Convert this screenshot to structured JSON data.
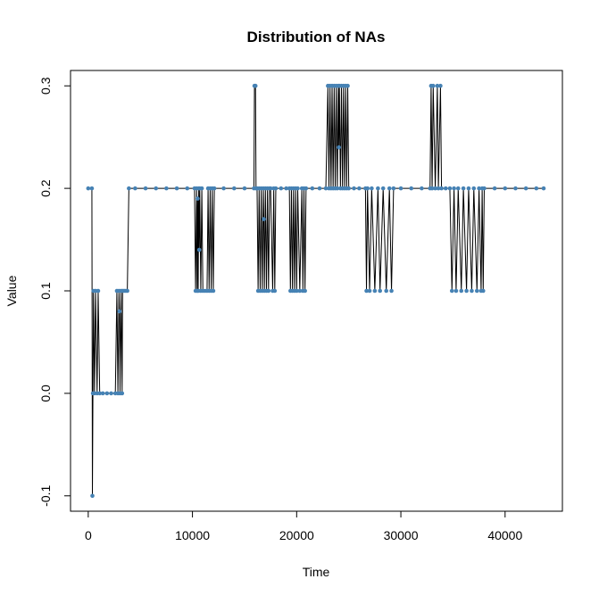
{
  "chart_data": {
    "type": "line",
    "title": "Distribution of NAs",
    "xlabel": "Time",
    "ylabel": "Value",
    "xlim": [
      -1700,
      45500
    ],
    "ylim": [
      -0.115,
      0.315
    ],
    "x_ticks": [
      0,
      10000,
      20000,
      30000,
      40000
    ],
    "x_tick_labels": [
      "0",
      "10000",
      "20000",
      "30000",
      "40000"
    ],
    "y_ticks": [
      -0.1,
      0.0,
      0.1,
      0.2,
      0.3
    ],
    "y_tick_labels": [
      "-0.1",
      "0.0",
      "0.1",
      "0.2",
      "0.3"
    ],
    "grid": false,
    "legend": "none",
    "line_color": "#000000",
    "point_color": "#4682b4",
    "series": [
      {
        "values": [
          [
            0,
            0.2
          ],
          [
            350,
            0.2
          ],
          [
            400,
            -0.1
          ],
          [
            450,
            0.0
          ],
          [
            500,
            0.1
          ],
          [
            600,
            0.0
          ],
          [
            700,
            0.1
          ],
          [
            850,
            0.0
          ],
          [
            950,
            0.1
          ],
          [
            1100,
            0.0
          ],
          [
            1400,
            0.0
          ],
          [
            1800,
            0.0
          ],
          [
            2200,
            0.0
          ],
          [
            2600,
            0.0
          ],
          [
            2750,
            0.1
          ],
          [
            2850,
            0.0
          ],
          [
            2950,
            0.1
          ],
          [
            3000,
            0.08
          ],
          [
            3050,
            0.0
          ],
          [
            3150,
            0.1
          ],
          [
            3250,
            0.0
          ],
          [
            3300,
            0.1
          ],
          [
            3450,
            0.1
          ],
          [
            3600,
            0.1
          ],
          [
            3750,
            0.1
          ],
          [
            3900,
            0.2
          ],
          [
            4500,
            0.2
          ],
          [
            5500,
            0.2
          ],
          [
            6500,
            0.2
          ],
          [
            7500,
            0.2
          ],
          [
            8500,
            0.2
          ],
          [
            9500,
            0.2
          ],
          [
            10200,
            0.2
          ],
          [
            10300,
            0.1
          ],
          [
            10400,
            0.2
          ],
          [
            10450,
            0.1
          ],
          [
            10500,
            0.19
          ],
          [
            10550,
            0.1
          ],
          [
            10600,
            0.2
          ],
          [
            10650,
            0.14
          ],
          [
            10700,
            0.2
          ],
          [
            10800,
            0.1
          ],
          [
            10900,
            0.2
          ],
          [
            11000,
            0.1
          ],
          [
            11200,
            0.1
          ],
          [
            11400,
            0.1
          ],
          [
            11500,
            0.2
          ],
          [
            11600,
            0.1
          ],
          [
            11700,
            0.2
          ],
          [
            11800,
            0.1
          ],
          [
            11900,
            0.2
          ],
          [
            12000,
            0.1
          ],
          [
            12100,
            0.2
          ],
          [
            13000,
            0.2
          ],
          [
            14000,
            0.2
          ],
          [
            15000,
            0.2
          ],
          [
            15900,
            0.2
          ],
          [
            15950,
            0.3
          ],
          [
            16050,
            0.3
          ],
          [
            16100,
            0.2
          ],
          [
            16200,
            0.2
          ],
          [
            16300,
            0.1
          ],
          [
            16400,
            0.2
          ],
          [
            16500,
            0.1
          ],
          [
            16600,
            0.2
          ],
          [
            16700,
            0.1
          ],
          [
            16800,
            0.2
          ],
          [
            16850,
            0.17
          ],
          [
            16900,
            0.1
          ],
          [
            17000,
            0.2
          ],
          [
            17100,
            0.1
          ],
          [
            17200,
            0.2
          ],
          [
            17300,
            0.1
          ],
          [
            17400,
            0.2
          ],
          [
            17500,
            0.2
          ],
          [
            17700,
            0.1
          ],
          [
            17800,
            0.2
          ],
          [
            17900,
            0.1
          ],
          [
            18000,
            0.2
          ],
          [
            18500,
            0.2
          ],
          [
            19000,
            0.2
          ],
          [
            19300,
            0.2
          ],
          [
            19400,
            0.1
          ],
          [
            19500,
            0.2
          ],
          [
            19600,
            0.1
          ],
          [
            19700,
            0.2
          ],
          [
            19800,
            0.1
          ],
          [
            19900,
            0.2
          ],
          [
            20000,
            0.1
          ],
          [
            20100,
            0.2
          ],
          [
            20300,
            0.1
          ],
          [
            20500,
            0.2
          ],
          [
            20600,
            0.1
          ],
          [
            20700,
            0.2
          ],
          [
            20800,
            0.1
          ],
          [
            20900,
            0.2
          ],
          [
            21500,
            0.2
          ],
          [
            22200,
            0.2
          ],
          [
            22800,
            0.2
          ],
          [
            23000,
            0.3
          ],
          [
            23100,
            0.2
          ],
          [
            23200,
            0.3
          ],
          [
            23300,
            0.2
          ],
          [
            23400,
            0.3
          ],
          [
            23500,
            0.2
          ],
          [
            23600,
            0.3
          ],
          [
            23700,
            0.2
          ],
          [
            23800,
            0.3
          ],
          [
            23900,
            0.2
          ],
          [
            24000,
            0.3
          ],
          [
            24050,
            0.24
          ],
          [
            24100,
            0.3
          ],
          [
            24200,
            0.2
          ],
          [
            24300,
            0.3
          ],
          [
            24400,
            0.2
          ],
          [
            24500,
            0.3
          ],
          [
            24600,
            0.2
          ],
          [
            24700,
            0.3
          ],
          [
            24800,
            0.2
          ],
          [
            24900,
            0.3
          ],
          [
            25000,
            0.2
          ],
          [
            25500,
            0.2
          ],
          [
            26000,
            0.2
          ],
          [
            26600,
            0.2
          ],
          [
            26700,
            0.1
          ],
          [
            26800,
            0.2
          ],
          [
            27000,
            0.1
          ],
          [
            27200,
            0.2
          ],
          [
            27500,
            0.1
          ],
          [
            27800,
            0.2
          ],
          [
            28000,
            0.1
          ],
          [
            28300,
            0.2
          ],
          [
            28600,
            0.1
          ],
          [
            28900,
            0.2
          ],
          [
            29100,
            0.1
          ],
          [
            29300,
            0.2
          ],
          [
            30000,
            0.2
          ],
          [
            31000,
            0.2
          ],
          [
            32000,
            0.2
          ],
          [
            32800,
            0.2
          ],
          [
            32900,
            0.3
          ],
          [
            33000,
            0.2
          ],
          [
            33100,
            0.3
          ],
          [
            33300,
            0.2
          ],
          [
            33500,
            0.3
          ],
          [
            33600,
            0.2
          ],
          [
            33800,
            0.3
          ],
          [
            33900,
            0.2
          ],
          [
            34300,
            0.2
          ],
          [
            34700,
            0.2
          ],
          [
            34900,
            0.1
          ],
          [
            35100,
            0.2
          ],
          [
            35300,
            0.1
          ],
          [
            35500,
            0.2
          ],
          [
            35800,
            0.1
          ],
          [
            36000,
            0.2
          ],
          [
            36300,
            0.1
          ],
          [
            36500,
            0.2
          ],
          [
            36800,
            0.1
          ],
          [
            37000,
            0.2
          ],
          [
            37300,
            0.1
          ],
          [
            37500,
            0.2
          ],
          [
            37700,
            0.1
          ],
          [
            37800,
            0.2
          ],
          [
            37900,
            0.1
          ],
          [
            38000,
            0.2
          ],
          [
            39000,
            0.2
          ],
          [
            40000,
            0.2
          ],
          [
            41000,
            0.2
          ],
          [
            42000,
            0.2
          ],
          [
            43000,
            0.2
          ],
          [
            43700,
            0.2
          ]
        ]
      }
    ]
  }
}
